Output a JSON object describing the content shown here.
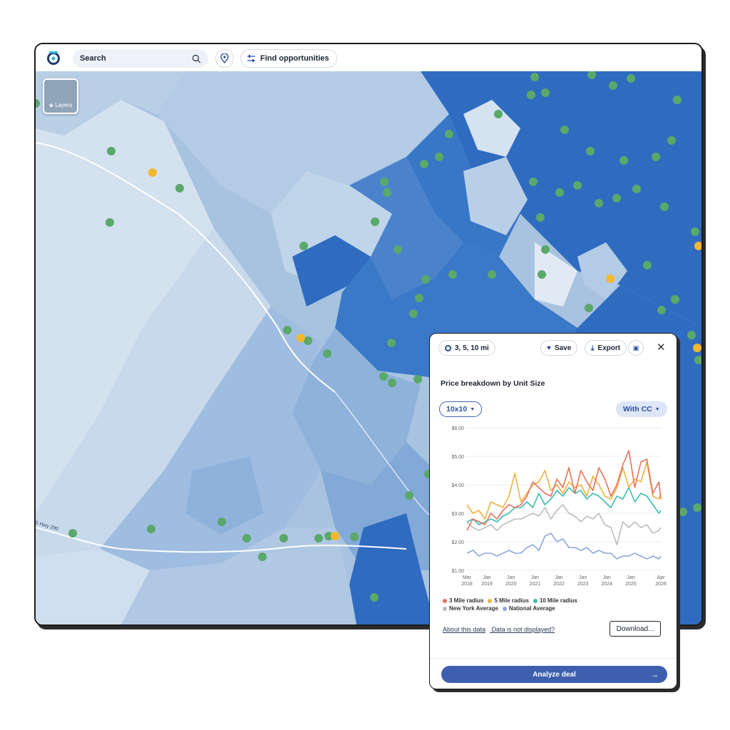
{
  "search": {
    "placeholder": "Search"
  },
  "toolbar": {
    "find_label": "Find opportunities"
  },
  "map": {
    "layers_label": "Layers",
    "highway_label": "S Hwy 290"
  },
  "panel": {
    "radius_chip": "3, 5, 10 mi",
    "save_label": "Save",
    "export_label": "Export",
    "title": "Price breakdown by Unit Size",
    "unit_size": "10x10",
    "cc_option": "With CC",
    "about_link": "About this data",
    "not_displayed_link": "Data is not displayed?",
    "download_label": "Download...",
    "analyze_label": "Analyze deal"
  },
  "colors": {
    "accent": "#3d5fae",
    "map_dark": "#2f6cc0",
    "pin_green": "#5aa86a",
    "pin_yellow": "#f3b82e"
  },
  "chart_data": {
    "type": "line",
    "y_ticks": [
      "$6.00",
      "$5.00",
      "$4.00",
      "$3.00",
      "$2.00",
      "$1.00"
    ],
    "ylim": [
      1,
      6
    ],
    "x_ticks": [
      [
        "Mar",
        "2018"
      ],
      [
        "Jan",
        "2019"
      ],
      [
        "Jan",
        "2020"
      ],
      [
        "Jan",
        "2021"
      ],
      [
        "Jan",
        "2022"
      ],
      [
        "Jan",
        "2023"
      ],
      [
        "Jan",
        "2024"
      ],
      [
        "Jan",
        "2025"
      ],
      [
        "Apr",
        "2026"
      ]
    ],
    "x_tick_values": [
      0,
      10,
      22,
      34,
      46,
      58,
      70,
      82,
      97
    ],
    "x_step_months": 3,
    "series": [
      {
        "name": "3 Mile radius",
        "color": "#e8735a",
        "values": [
          2.4,
          2.8,
          2.7,
          2.6,
          3.0,
          2.8,
          3.1,
          3.3,
          3.2,
          3.3,
          3.6,
          4.1,
          3.9,
          3.7,
          3.6,
          4.2,
          3.9,
          4.6,
          3.7,
          4.5,
          4.1,
          3.8,
          4.6,
          4.2,
          3.6,
          4.0,
          4.7,
          5.2,
          3.9,
          4.8,
          4.9,
          3.7,
          4.1,
          3.5
        ]
      },
      {
        "name": "5 Mile radius",
        "color": "#f0b23e",
        "values": [
          3.3,
          3.0,
          3.1,
          2.8,
          3.4,
          3.3,
          3.2,
          3.6,
          4.4,
          3.4,
          3.7,
          4.0,
          4.1,
          4.5,
          3.8,
          4.0,
          3.7,
          4.1,
          3.9,
          4.0,
          3.6,
          4.3,
          4.0,
          3.6,
          3.5,
          3.9,
          4.6,
          3.9,
          4.2,
          4.1,
          4.8,
          3.6,
          3.5,
          3.7
        ]
      },
      {
        "name": "10 Mile radius",
        "color": "#3dbdb0",
        "values": [
          2.7,
          2.8,
          2.6,
          2.7,
          2.8,
          2.7,
          2.9,
          3.0,
          3.2,
          3.2,
          3.4,
          3.2,
          3.7,
          3.3,
          3.5,
          3.8,
          3.6,
          3.9,
          3.7,
          3.8,
          3.5,
          3.7,
          3.6,
          3.4,
          3.2,
          3.6,
          3.5,
          3.9,
          3.4,
          3.7,
          3.6,
          3.3,
          3.0,
          3.1
        ]
      },
      {
        "name": "New York Average",
        "color": "#bdbdbd",
        "values": [
          2.7,
          2.5,
          2.4,
          2.5,
          2.6,
          2.4,
          2.6,
          2.7,
          2.8,
          2.8,
          2.9,
          3.0,
          2.9,
          3.2,
          2.8,
          3.1,
          3.3,
          3.0,
          2.9,
          2.7,
          2.9,
          2.8,
          3.0,
          2.6,
          2.5,
          1.9,
          2.7,
          2.5,
          2.7,
          2.5,
          2.6,
          2.3,
          2.4,
          2.5
        ]
      },
      {
        "name": "National Average",
        "color": "#8fa7dc",
        "values": [
          1.6,
          1.7,
          1.5,
          1.6,
          1.6,
          1.5,
          1.6,
          1.7,
          1.6,
          1.6,
          1.8,
          1.9,
          1.7,
          2.2,
          2.3,
          2.0,
          2.1,
          1.8,
          1.8,
          1.7,
          1.8,
          1.6,
          1.7,
          1.6,
          1.6,
          1.4,
          1.5,
          1.5,
          1.6,
          1.5,
          1.4,
          1.5,
          1.4,
          1.5
        ]
      }
    ]
  }
}
